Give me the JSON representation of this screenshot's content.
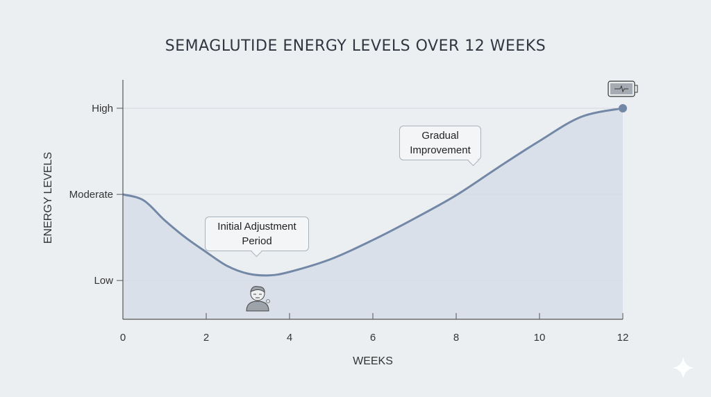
{
  "chart_data": {
    "type": "area",
    "title": "SEMAGLUTIDE ENERGY LEVELS OVER 12 WEEKS",
    "xlabel": "WEEKS",
    "ylabel": "ENERGY LEVELS",
    "xlim": [
      0,
      12
    ],
    "ylim": [
      0.55,
      3.33
    ],
    "x_ticks": [
      0,
      2,
      4,
      6,
      8,
      10,
      12
    ],
    "y_ticks": [
      {
        "value": 1,
        "label": "Low"
      },
      {
        "value": 2,
        "label": "Moderate"
      },
      {
        "value": 3,
        "label": "High"
      }
    ],
    "grid": "horizontal",
    "series": [
      {
        "x": [
          0,
          0.5,
          1,
          1.5,
          2,
          2.5,
          3,
          3.5,
          4,
          5,
          6,
          7,
          8,
          9,
          10,
          11,
          12
        ],
        "values": [
          2.0,
          1.93,
          1.7,
          1.5,
          1.33,
          1.17,
          1.08,
          1.06,
          1.1,
          1.25,
          1.47,
          1.72,
          1.99,
          2.31,
          2.62,
          2.9,
          3.0
        ]
      }
    ],
    "line_color": "#7388a6",
    "fill_color": "#d3dbe5",
    "annotations": [
      {
        "text_line1": "Initial Adjustment",
        "text_line2": "Period",
        "icon": "tired-person-icon"
      },
      {
        "text_line1": "Gradual",
        "text_line2": "Improvement"
      },
      {
        "icon": "battery-full-icon"
      }
    ]
  }
}
